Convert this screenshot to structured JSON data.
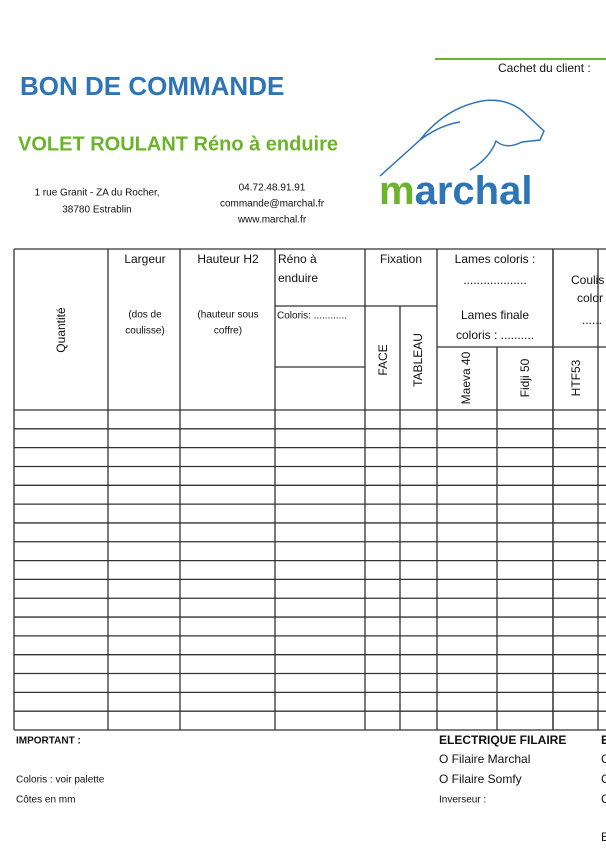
{
  "header": {
    "title": "BON DE COMMANDE",
    "subtitle": "VOLET ROULANT Réno à enduire",
    "address": [
      "1 rue Granit - ZA du Rocher,",
      "38780 Estrablin"
    ],
    "contact": [
      "04.72.48.91.91",
      "commande@marchal.fr",
      "www.marchal.fr"
    ],
    "stamp": "Cachet du client :",
    "logo": "marchal"
  },
  "table": {
    "quantity": "Quantité",
    "width": [
      "Largeur",
      "(dos de",
      "coulisse)"
    ],
    "height": [
      "Hauteur H2",
      "(hauteur sous",
      "coffre)"
    ],
    "reno": [
      "Réno à",
      "enduire",
      "Coloris: ............"
    ],
    "fixation": [
      "Fixation",
      "FACE",
      "TABLEAU"
    ],
    "slats": [
      "Lames coloris :",
      "...................",
      "Lames finale",
      "coloris : .........."
    ],
    "slat_types": [
      "Maeva 40",
      "Fidji 50",
      "HTF53"
    ],
    "rails": [
      "Coulis",
      "color",
      "......"
    ]
  },
  "footer": {
    "important": "IMPORTANT :",
    "notes": [
      "Coloris : voir palette",
      "Côtes en mm"
    ],
    "electric": "ELECTRIQUE FILAIRE",
    "options": [
      "O Filaire Marchal",
      "O Filaire Somfy",
      "Inverseur :"
    ],
    "cut": [
      "E",
      "C",
      "C",
      "C",
      "E"
    ]
  }
}
